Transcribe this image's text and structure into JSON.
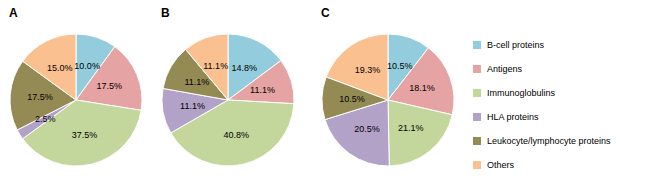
{
  "chart_data": [
    {
      "type": "pie",
      "title": "A",
      "categories": [
        "B-cell proteins",
        "Antigens",
        "Immunoglobulins",
        "HLA proteins",
        "Leukocyte/lymphocyte proteins",
        "Others"
      ],
      "values": [
        10.0,
        17.5,
        37.5,
        2.5,
        17.5,
        15.0
      ],
      "value_labels": [
        "10.0%",
        "17.5%",
        "37.5%",
        "2.5%",
        "17.5%",
        "15.0%"
      ],
      "colors": [
        "#93cddd",
        "#e6a3a3",
        "#c3d69b",
        "#b3a2c7",
        "#948a54",
        "#fac090"
      ],
      "data_labels": true,
      "legend": "right"
    },
    {
      "type": "pie",
      "title": "B",
      "categories": [
        "B-cell proteins",
        "Antigens",
        "Immunoglobulins",
        "HLA proteins",
        "Leukocyte/lymphocyte proteins",
        "Others"
      ],
      "values": [
        14.8,
        11.1,
        40.8,
        11.1,
        11.1,
        11.1
      ],
      "value_labels": [
        "14.8%",
        "11.1%",
        "40.8%",
        "11.1%",
        "11.1%",
        "11.1%"
      ],
      "colors": [
        "#93cddd",
        "#e6a3a3",
        "#c3d69b",
        "#b3a2c7",
        "#948a54",
        "#fac090"
      ],
      "data_labels": true,
      "legend": "right"
    },
    {
      "type": "pie",
      "title": "C",
      "categories": [
        "B-cell proteins",
        "Antigens",
        "Immunoglobulins",
        "HLA proteins",
        "Leukocyte/lymphocyte proteins",
        "Others"
      ],
      "values": [
        10.5,
        18.1,
        21.1,
        20.5,
        10.5,
        19.3
      ],
      "value_labels": [
        "10.5%",
        "18.1%",
        "21.1%",
        "20.5%",
        "10.5%",
        "19.3%"
      ],
      "colors": [
        "#93cddd",
        "#e6a3a3",
        "#c3d69b",
        "#b3a2c7",
        "#948a54",
        "#fac090"
      ],
      "data_labels": true,
      "legend": "right"
    }
  ]
}
